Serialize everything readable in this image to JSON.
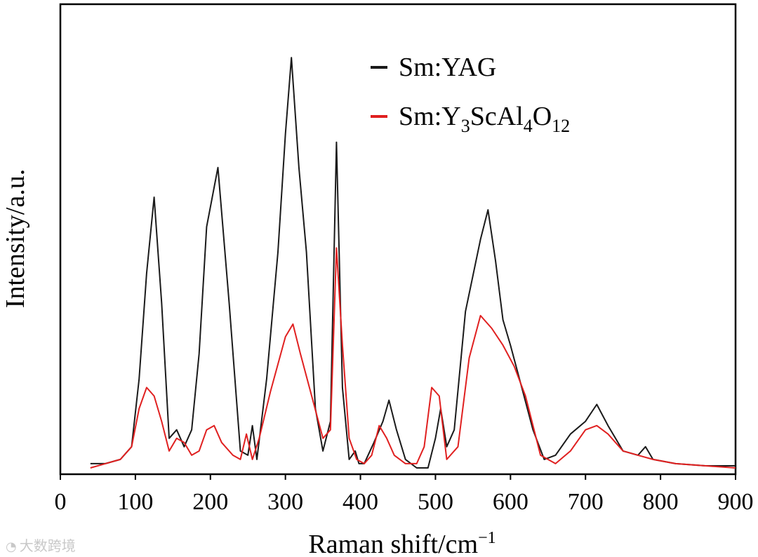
{
  "chart_data": {
    "type": "line",
    "xlabel_main": "Raman shift/cm",
    "xlabel_sup": "−1",
    "ylabel": "Intensity/a.u.",
    "xlim": [
      0,
      900
    ],
    "ylim": [
      0,
      1
    ],
    "y_ticks_shown": false,
    "x_ticks": [
      0,
      100,
      200,
      300,
      400,
      500,
      600,
      700,
      800,
      900
    ],
    "x_tick_labels": [
      "0",
      "100",
      "200",
      "300",
      "400",
      "500",
      "600",
      "700",
      "800",
      "900"
    ],
    "legend_position": "top-right",
    "series": [
      {
        "name": "Sm:YAG",
        "legend_parts": [
          {
            "t": "Sm:YAG",
            "sub": false
          }
        ],
        "color": "#1a1a1a",
        "x": [
          40,
          60,
          80,
          95,
          105,
          115,
          125,
          135,
          145,
          155,
          165,
          175,
          185,
          195,
          210,
          225,
          240,
          250,
          256,
          262,
          275,
          290,
          300,
          308,
          318,
          328,
          340,
          350,
          360,
          368,
          376,
          385,
          393,
          398,
          405,
          418,
          430,
          438,
          448,
          460,
          475,
          490,
          500,
          507,
          515,
          525,
          540,
          560,
          570,
          580,
          590,
          600,
          615,
          630,
          645,
          660,
          680,
          700,
          715,
          730,
          750,
          770,
          780,
          790,
          820,
          860,
          900
        ],
        "y": [
          0.02,
          0.02,
          0.03,
          0.06,
          0.22,
          0.47,
          0.65,
          0.4,
          0.08,
          0.1,
          0.06,
          0.1,
          0.28,
          0.58,
          0.72,
          0.4,
          0.05,
          0.04,
          0.11,
          0.03,
          0.22,
          0.52,
          0.8,
          0.98,
          0.72,
          0.52,
          0.15,
          0.05,
          0.12,
          0.78,
          0.2,
          0.03,
          0.05,
          0.02,
          0.02,
          0.07,
          0.12,
          0.17,
          0.1,
          0.03,
          0.01,
          0.01,
          0.08,
          0.15,
          0.06,
          0.1,
          0.38,
          0.55,
          0.62,
          0.5,
          0.36,
          0.3,
          0.2,
          0.1,
          0.03,
          0.04,
          0.09,
          0.12,
          0.16,
          0.11,
          0.05,
          0.04,
          0.06,
          0.03,
          0.02,
          0.015,
          0.015
        ]
      },
      {
        "name": "Sm:Y3ScAl4O12",
        "legend_parts": [
          {
            "t": "Sm:Y",
            "sub": false
          },
          {
            "t": "3",
            "sub": true
          },
          {
            "t": "ScAl",
            "sub": false
          },
          {
            "t": "4",
            "sub": true
          },
          {
            "t": "O",
            "sub": false
          },
          {
            "t": "12",
            "sub": true
          }
        ],
        "color": "#e02020",
        "x": [
          40,
          60,
          80,
          95,
          105,
          115,
          125,
          135,
          145,
          155,
          165,
          175,
          185,
          195,
          205,
          215,
          230,
          240,
          248,
          256,
          265,
          280,
          300,
          310,
          320,
          335,
          350,
          360,
          368,
          376,
          385,
          395,
          405,
          415,
          425,
          435,
          445,
          460,
          475,
          485,
          495,
          505,
          515,
          530,
          545,
          560,
          575,
          590,
          605,
          620,
          640,
          660,
          680,
          700,
          715,
          730,
          750,
          770,
          790,
          820,
          860,
          900
        ],
        "y": [
          0.01,
          0.02,
          0.03,
          0.06,
          0.15,
          0.2,
          0.18,
          0.12,
          0.05,
          0.08,
          0.07,
          0.04,
          0.05,
          0.1,
          0.11,
          0.07,
          0.04,
          0.03,
          0.09,
          0.03,
          0.08,
          0.19,
          0.32,
          0.35,
          0.28,
          0.18,
          0.08,
          0.1,
          0.53,
          0.3,
          0.08,
          0.03,
          0.02,
          0.04,
          0.11,
          0.08,
          0.04,
          0.02,
          0.02,
          0.06,
          0.2,
          0.18,
          0.03,
          0.06,
          0.27,
          0.37,
          0.34,
          0.3,
          0.25,
          0.18,
          0.04,
          0.02,
          0.05,
          0.1,
          0.11,
          0.09,
          0.05,
          0.04,
          0.03,
          0.02,
          0.015,
          0.01
        ]
      }
    ]
  },
  "watermark": {
    "text": "大数跨境",
    "icon": "weibo-logo-icon"
  }
}
